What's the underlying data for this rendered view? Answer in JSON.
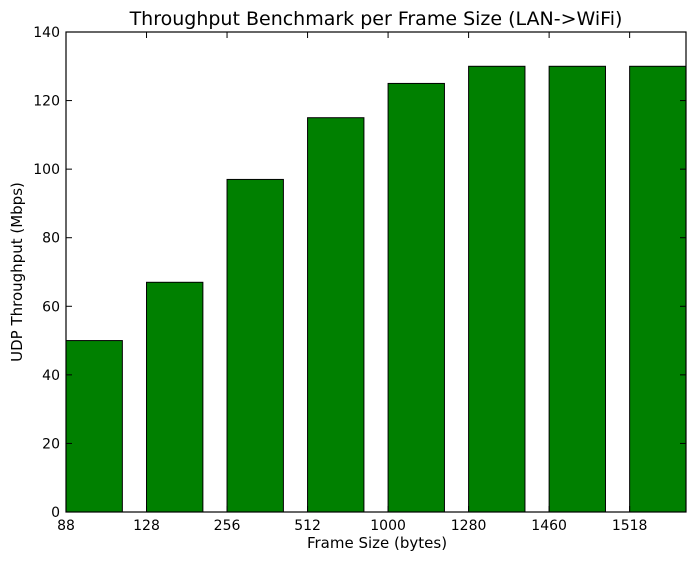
{
  "chart_data": {
    "type": "bar",
    "title": "Throughput Benchmark per Frame Size (LAN->WiFi)",
    "xlabel": "Frame Size (bytes)",
    "ylabel": "UDP Throughput (Mbps)",
    "categories": [
      "88",
      "128",
      "256",
      "512",
      "1000",
      "1280",
      "1460",
      "1518"
    ],
    "values": [
      50,
      67,
      97,
      115,
      125,
      130,
      130,
      130
    ],
    "ylim": [
      0,
      140
    ],
    "yticks": [
      0,
      20,
      40,
      60,
      80,
      100,
      120,
      140
    ],
    "bar_color": "#008000",
    "grid": false,
    "legend": "none"
  }
}
